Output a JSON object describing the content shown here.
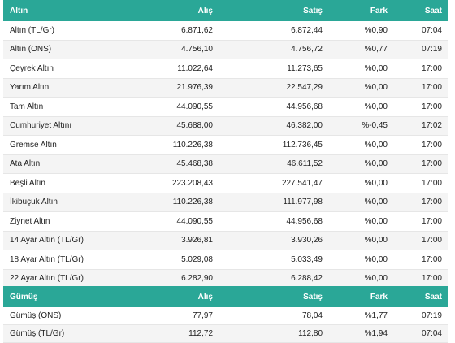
{
  "gold": {
    "headers": [
      "Altın",
      "Alış",
      "Satış",
      "Fark",
      "Saat"
    ],
    "rows": [
      [
        "Altın (TL/Gr)",
        "6.871,62",
        "6.872,44",
        "%0,90",
        "07:04"
      ],
      [
        "Altın (ONS)",
        "4.756,10",
        "4.756,72",
        "%0,77",
        "07:19"
      ],
      [
        "Çeyrek Altın",
        "11.022,64",
        "11.273,65",
        "%0,00",
        "17:00"
      ],
      [
        "Yarım Altın",
        "21.976,39",
        "22.547,29",
        "%0,00",
        "17:00"
      ],
      [
        "Tam Altın",
        "44.090,55",
        "44.956,68",
        "%0,00",
        "17:00"
      ],
      [
        "Cumhuriyet Altını",
        "45.688,00",
        "46.382,00",
        "%-0,45",
        "17:02"
      ],
      [
        "Gremse Altın",
        "110.226,38",
        "112.736,45",
        "%0,00",
        "17:00"
      ],
      [
        "Ata Altın",
        "45.468,38",
        "46.611,52",
        "%0,00",
        "17:00"
      ],
      [
        "Beşli Altın",
        "223.208,43",
        "227.541,47",
        "%0,00",
        "17:00"
      ],
      [
        "İkibuçuk Altın",
        "110.226,38",
        "111.977,98",
        "%0,00",
        "17:00"
      ],
      [
        "Ziynet Altın",
        "44.090,55",
        "44.956,68",
        "%0,00",
        "17:00"
      ],
      [
        "14 Ayar Altın (TL/Gr)",
        "3.926,81",
        "3.930,26",
        "%0,00",
        "17:00"
      ],
      [
        "18 Ayar Altın (TL/Gr)",
        "5.029,08",
        "5.033,49",
        "%0,00",
        "17:00"
      ],
      [
        "22 Ayar Altın (TL/Gr)",
        "6.282,90",
        "6.288,42",
        "%0,00",
        "17:00"
      ]
    ]
  },
  "silver": {
    "headers": [
      "Gümüş",
      "Alış",
      "Satış",
      "Fark",
      "Saat"
    ],
    "rows": [
      [
        "Gümüş (ONS)",
        "77,97",
        "78,04",
        "%1,77",
        "07:19"
      ],
      [
        "Gümüş (TL/Gr)",
        "112,72",
        "112,80",
        "%1,94",
        "07:04"
      ]
    ]
  },
  "colors": {
    "header_bg": "#2aa797",
    "header_text": "#ffffff",
    "row_alt": "#f4f4f4"
  }
}
